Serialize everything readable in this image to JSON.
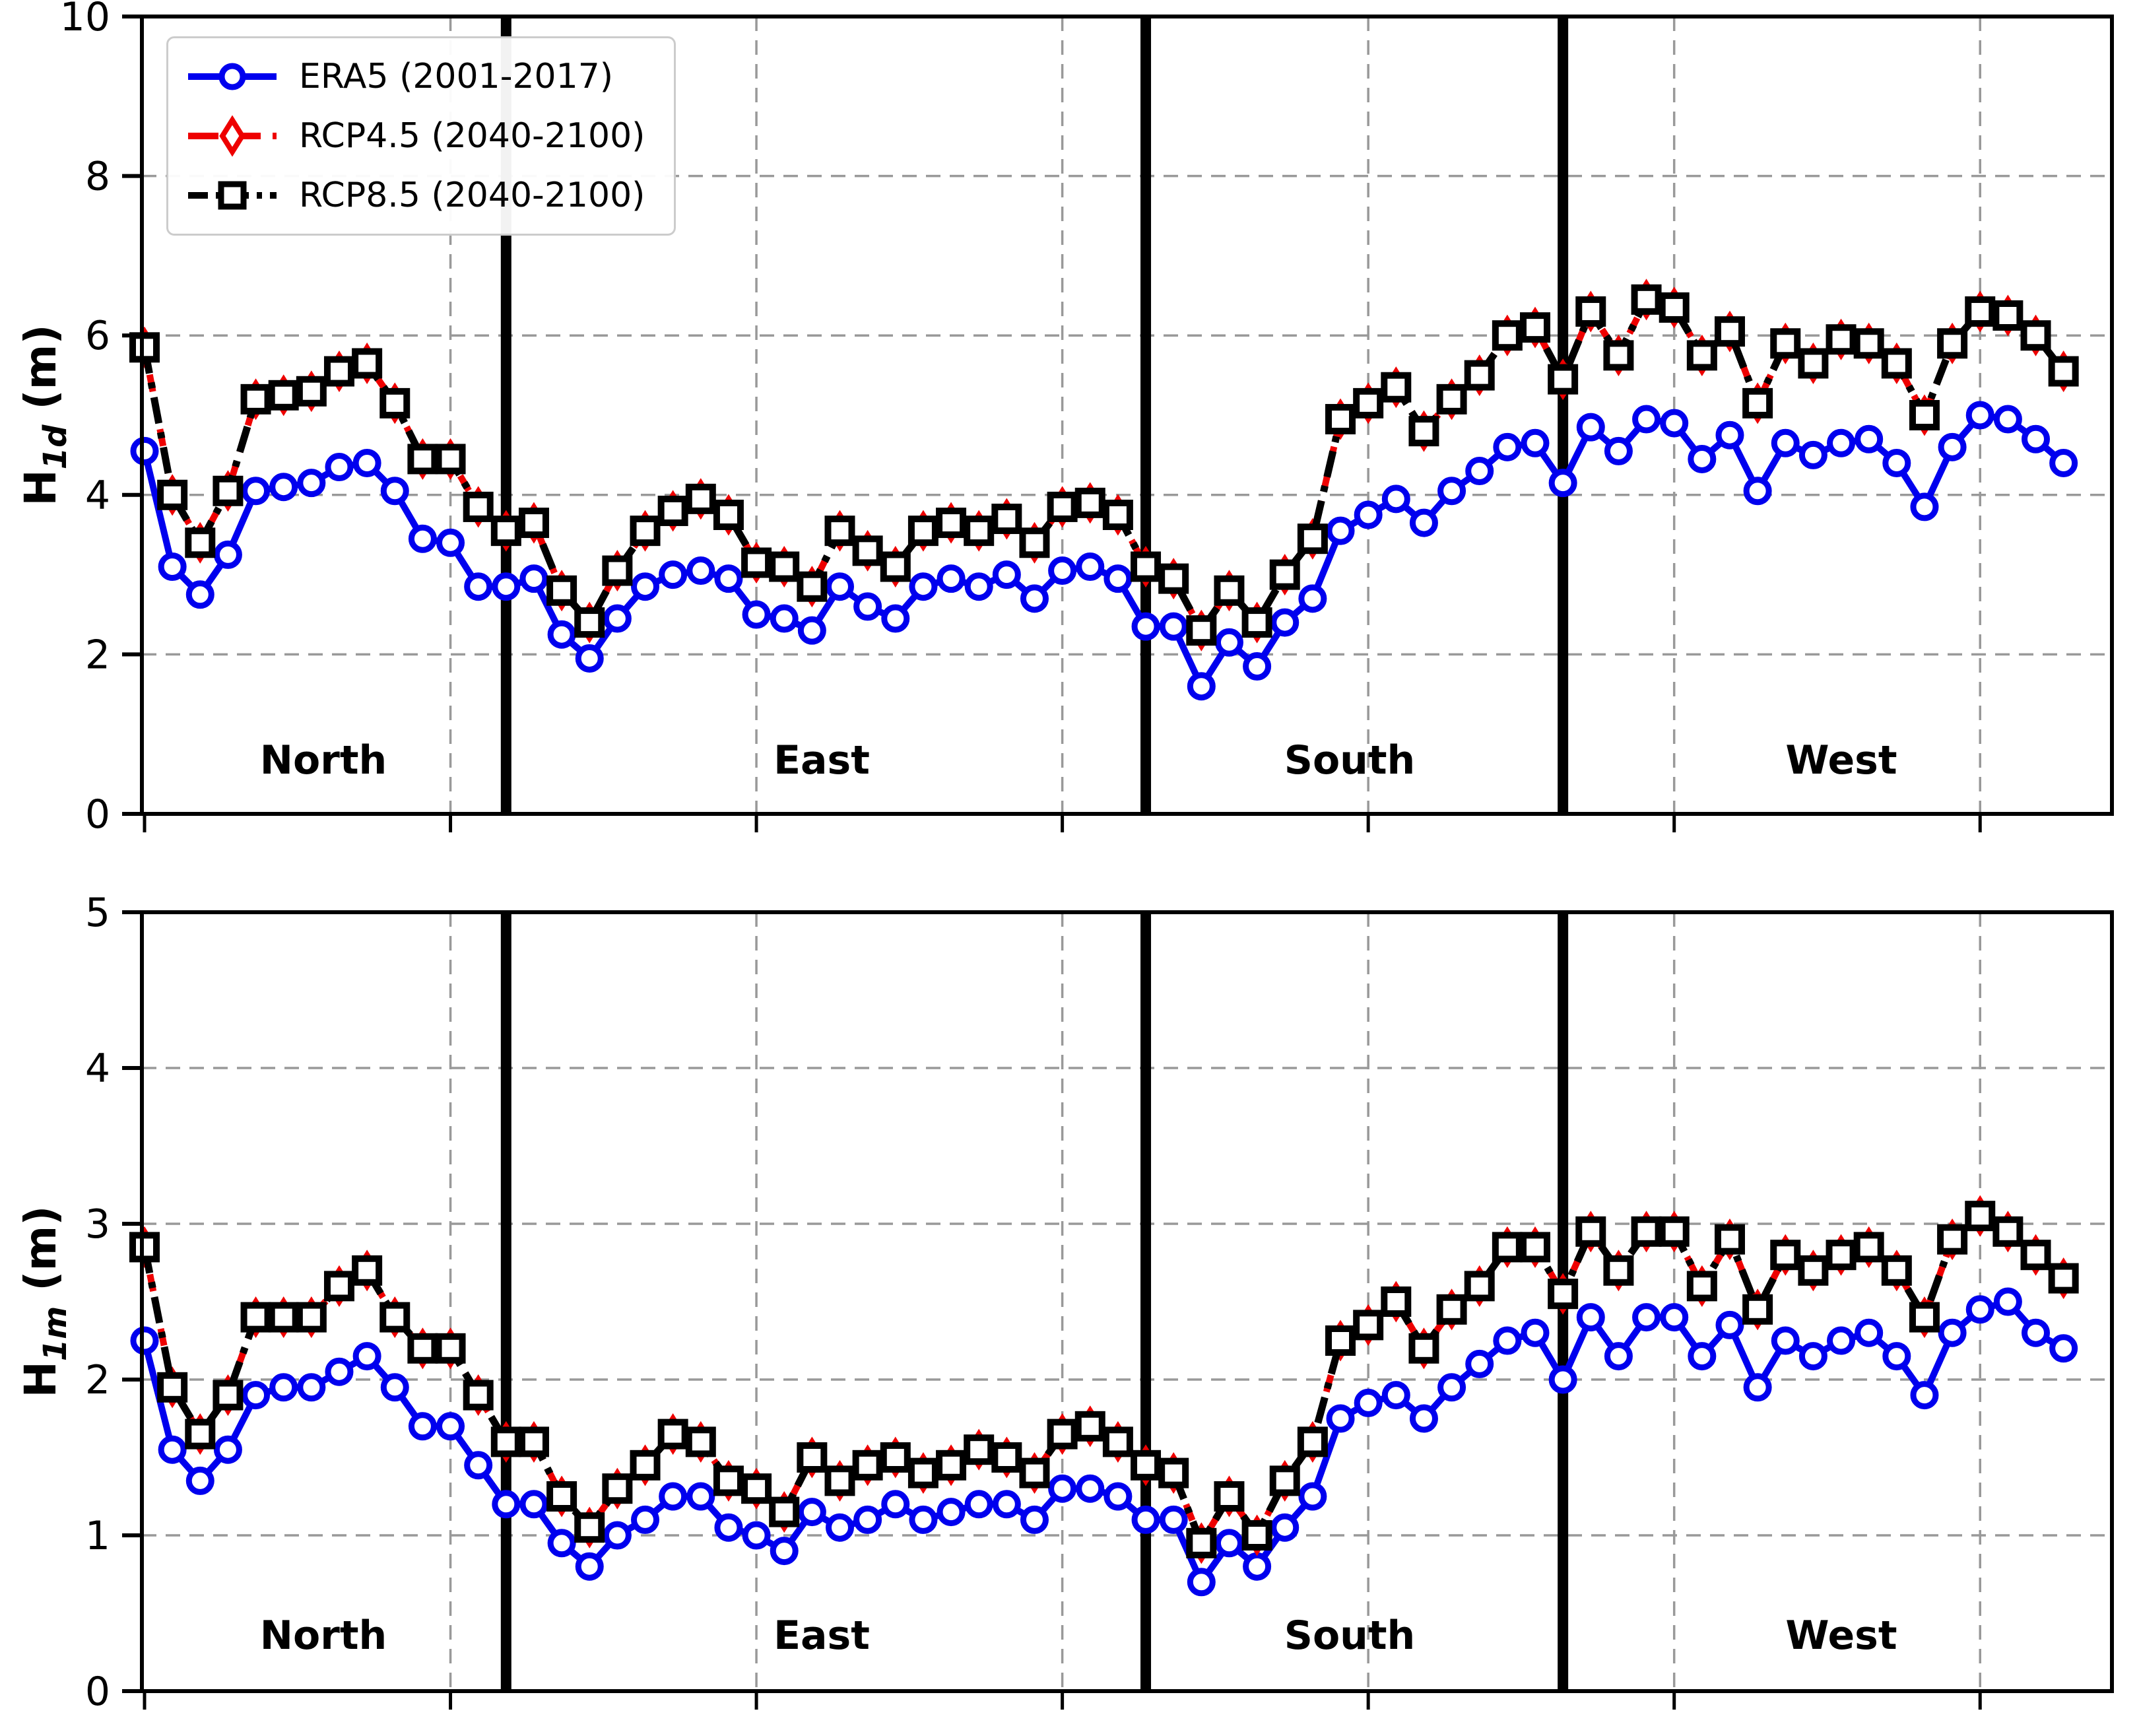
{
  "legend": {
    "items": [
      {
        "label": "ERA5 (2001-2017)",
        "color": "#0000ee",
        "marker": "circle",
        "linestyle": "solid"
      },
      {
        "label": "RCP4.5 (2040-2100)",
        "color": "#ee0000",
        "marker": "diamond",
        "linestyle": "dashed"
      },
      {
        "label": "RCP8.5 (2040-2100)",
        "color": "#000000",
        "marker": "square",
        "linestyle": "dashdot"
      }
    ]
  },
  "regions": [
    {
      "label": "North"
    },
    {
      "label": "East"
    },
    {
      "label": "South"
    },
    {
      "label": "West"
    }
  ],
  "panels": [
    {
      "ylabel": {
        "base": "H",
        "sub": "1d",
        "unit": " (m)"
      }
    },
    {
      "ylabel": {
        "base": "H",
        "sub": "1m",
        "unit": " (m)"
      }
    }
  ],
  "chart_data": [
    {
      "type": "line",
      "title": "",
      "xlabel": "",
      "ylabel": "H_1d (m)",
      "ylim": [
        0,
        10
      ],
      "yticks": [
        0,
        2,
        4,
        6,
        8,
        10
      ],
      "grid": true,
      "legend_position": "upper left",
      "n_points": 70,
      "x_note": "coastal points ordered by island sector; x axis has no numeric labels, ticks every 11th point",
      "x_tick_indices": [
        0,
        11,
        22,
        33,
        44,
        55,
        66
      ],
      "divider_indices": [
        13,
        36,
        51
      ],
      "regions": [
        "North",
        "East",
        "South",
        "West"
      ],
      "region_spans": {
        "North": [
          0,
          13
        ],
        "East": [
          13,
          36
        ],
        "South": [
          36,
          51
        ],
        "West": [
          51,
          69
        ]
      },
      "series": [
        {
          "name": "ERA5 (2001-2017)",
          "color": "#0000ee",
          "marker": "circle",
          "linestyle": "solid",
          "values": [
            4.55,
            3.1,
            2.75,
            3.25,
            4.05,
            4.1,
            4.15,
            4.35,
            4.4,
            4.05,
            3.45,
            3.4,
            2.85,
            2.85,
            2.95,
            2.25,
            1.95,
            2.45,
            2.85,
            3.0,
            3.05,
            2.95,
            2.5,
            2.45,
            2.3,
            2.85,
            2.6,
            2.45,
            2.85,
            2.95,
            2.85,
            3.0,
            2.7,
            3.05,
            3.1,
            2.95,
            2.35,
            2.35,
            1.6,
            2.15,
            1.85,
            2.4,
            2.7,
            3.55,
            3.75,
            3.95,
            3.65,
            4.05,
            4.3,
            4.6,
            4.65,
            4.15,
            4.85,
            4.55,
            4.95,
            4.9,
            4.45,
            4.75,
            4.05,
            4.65,
            4.5,
            4.65,
            4.7,
            4.4,
            3.85,
            4.6,
            5.0,
            4.95,
            4.7,
            4.4
          ]
        },
        {
          "name": "RCP4.5 (2040-2100)",
          "color": "#ee0000",
          "marker": "diamond",
          "linestyle": "dashed",
          "values": [
            5.85,
            4.0,
            3.4,
            4.05,
            5.2,
            5.25,
            5.3,
            5.55,
            5.65,
            5.15,
            4.45,
            4.45,
            3.85,
            3.55,
            3.65,
            2.8,
            2.4,
            3.05,
            3.55,
            3.8,
            3.95,
            3.75,
            3.15,
            3.1,
            2.85,
            3.55,
            3.3,
            3.1,
            3.55,
            3.65,
            3.55,
            3.7,
            3.4,
            3.85,
            3.9,
            3.75,
            3.1,
            2.95,
            2.3,
            2.8,
            2.4,
            3.0,
            3.45,
            4.95,
            5.15,
            5.35,
            4.8,
            5.2,
            5.5,
            6.0,
            6.1,
            5.45,
            6.3,
            5.75,
            6.45,
            6.35,
            5.75,
            6.05,
            5.15,
            5.9,
            5.65,
            5.95,
            5.9,
            5.65,
            5.0,
            5.9,
            6.3,
            6.25,
            6.0,
            5.55
          ]
        },
        {
          "name": "RCP8.5 (2040-2100)",
          "color": "#000000",
          "marker": "square",
          "linestyle": "dashdot",
          "values": [
            5.85,
            4.0,
            3.4,
            4.05,
            5.2,
            5.25,
            5.3,
            5.55,
            5.65,
            5.15,
            4.45,
            4.45,
            3.85,
            3.55,
            3.65,
            2.8,
            2.4,
            3.05,
            3.55,
            3.8,
            3.95,
            3.75,
            3.15,
            3.1,
            2.85,
            3.55,
            3.3,
            3.1,
            3.55,
            3.65,
            3.55,
            3.7,
            3.4,
            3.85,
            3.9,
            3.75,
            3.1,
            2.95,
            2.3,
            2.8,
            2.4,
            3.0,
            3.45,
            4.95,
            5.15,
            5.35,
            4.8,
            5.2,
            5.5,
            6.0,
            6.1,
            5.45,
            6.3,
            5.75,
            6.45,
            6.35,
            5.75,
            6.05,
            5.15,
            5.9,
            5.65,
            5.95,
            5.9,
            5.65,
            5.0,
            5.9,
            6.3,
            6.25,
            6.0,
            5.55
          ]
        }
      ]
    },
    {
      "type": "line",
      "title": "",
      "xlabel": "",
      "ylabel": "H_1m (m)",
      "ylim": [
        0,
        5
      ],
      "yticks": [
        0,
        1,
        2,
        3,
        4,
        5
      ],
      "grid": true,
      "legend_position": "none",
      "n_points": 70,
      "x_note": "same coastal points as upper panel",
      "x_tick_indices": [
        0,
        11,
        22,
        33,
        44,
        55,
        66
      ],
      "divider_indices": [
        13,
        36,
        51
      ],
      "regions": [
        "North",
        "East",
        "South",
        "West"
      ],
      "region_spans": {
        "North": [
          0,
          13
        ],
        "East": [
          13,
          36
        ],
        "South": [
          36,
          51
        ],
        "West": [
          51,
          69
        ]
      },
      "series": [
        {
          "name": "ERA5 (2001-2017)",
          "color": "#0000ee",
          "marker": "circle",
          "linestyle": "solid",
          "values": [
            2.25,
            1.55,
            1.35,
            1.55,
            1.9,
            1.95,
            1.95,
            2.05,
            2.15,
            1.95,
            1.7,
            1.7,
            1.45,
            1.2,
            1.2,
            0.95,
            0.8,
            1.0,
            1.1,
            1.25,
            1.25,
            1.05,
            1.0,
            0.9,
            1.15,
            1.05,
            1.1,
            1.2,
            1.1,
            1.15,
            1.2,
            1.2,
            1.1,
            1.3,
            1.3,
            1.25,
            1.1,
            1.1,
            0.7,
            0.95,
            0.8,
            1.05,
            1.25,
            1.75,
            1.85,
            1.9,
            1.75,
            1.95,
            2.1,
            2.25,
            2.3,
            2.0,
            2.4,
            2.15,
            2.4,
            2.4,
            2.15,
            2.35,
            1.95,
            2.25,
            2.15,
            2.25,
            2.3,
            2.15,
            1.9,
            2.3,
            2.45,
            2.5,
            2.3,
            2.2
          ]
        },
        {
          "name": "RCP4.5 (2040-2100)",
          "color": "#ee0000",
          "marker": "diamond",
          "linestyle": "dashed",
          "values": [
            2.85,
            1.95,
            1.65,
            1.9,
            2.4,
            2.4,
            2.4,
            2.6,
            2.7,
            2.4,
            2.2,
            2.2,
            1.9,
            1.6,
            1.6,
            1.25,
            1.05,
            1.3,
            1.45,
            1.65,
            1.6,
            1.35,
            1.3,
            1.15,
            1.5,
            1.35,
            1.45,
            1.5,
            1.4,
            1.45,
            1.55,
            1.5,
            1.4,
            1.65,
            1.7,
            1.6,
            1.45,
            1.4,
            0.95,
            1.25,
            1.0,
            1.35,
            1.6,
            2.25,
            2.35,
            2.5,
            2.2,
            2.45,
            2.6,
            2.85,
            2.85,
            2.55,
            2.95,
            2.7,
            2.95,
            2.95,
            2.6,
            2.9,
            2.45,
            2.8,
            2.7,
            2.8,
            2.85,
            2.7,
            2.4,
            2.9,
            3.05,
            2.95,
            2.8,
            2.65
          ]
        },
        {
          "name": "RCP8.5 (2040-2100)",
          "color": "#000000",
          "marker": "square",
          "linestyle": "dashdot",
          "values": [
            2.85,
            1.95,
            1.65,
            1.9,
            2.4,
            2.4,
            2.4,
            2.6,
            2.7,
            2.4,
            2.2,
            2.2,
            1.9,
            1.6,
            1.6,
            1.25,
            1.05,
            1.3,
            1.45,
            1.65,
            1.6,
            1.35,
            1.3,
            1.15,
            1.5,
            1.35,
            1.45,
            1.5,
            1.4,
            1.45,
            1.55,
            1.5,
            1.4,
            1.65,
            1.7,
            1.6,
            1.45,
            1.4,
            0.95,
            1.25,
            1.0,
            1.35,
            1.6,
            2.25,
            2.35,
            2.5,
            2.2,
            2.45,
            2.6,
            2.85,
            2.85,
            2.55,
            2.95,
            2.7,
            2.95,
            2.95,
            2.6,
            2.9,
            2.45,
            2.8,
            2.7,
            2.8,
            2.85,
            2.7,
            2.4,
            2.9,
            3.05,
            2.95,
            2.8,
            2.65
          ]
        }
      ]
    }
  ]
}
